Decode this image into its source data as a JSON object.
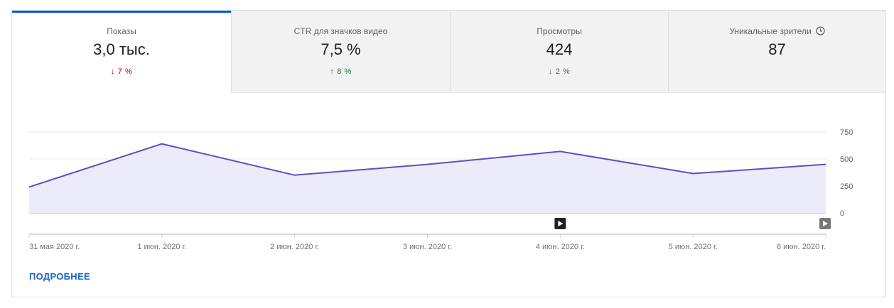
{
  "tabs": [
    {
      "title": "Показы",
      "value": "3,0 тыс.",
      "change": "7 %",
      "direction": "down",
      "change_color": "#c00000",
      "active": true
    },
    {
      "title": "CTR для значков видео",
      "value": "7,5 %",
      "change": "8 %",
      "direction": "up",
      "change_color": "#0b8043",
      "active": false
    },
    {
      "title": "Просмотры",
      "value": "424",
      "change": "2 %",
      "direction": "down",
      "change_color": "#606060",
      "active": false
    },
    {
      "title": "Уникальные зрители",
      "value": "87",
      "change": "",
      "direction": "",
      "change_color": "#606060",
      "active": false,
      "icon": "clock-icon"
    }
  ],
  "chart_data": {
    "type": "area",
    "title": "",
    "xlabel": "",
    "ylabel": "",
    "x": [
      "31 мая 2020 г.",
      "1 июн. 2020 г.",
      "2 июн. 2020 г.",
      "3 июн. 2020 г.",
      "4 июн. 2020 г.",
      "5 июн. 2020 г.",
      "6 июн. 2020 г."
    ],
    "series": [
      {
        "values": [
          240,
          640,
          350,
          450,
          570,
          365,
          450
        ]
      }
    ],
    "ylim": [
      0,
      750
    ],
    "yticks": [
      "750",
      "500",
      "250",
      "0"
    ],
    "grid": true,
    "line_color": "#5b4fc4",
    "fill_color": "#ecebfa",
    "markers": [
      {
        "icon": "play-icon",
        "at": "4 июн. 2020 г.",
        "color": "#222222"
      },
      {
        "icon": "play-icon",
        "at": "6 июн. 2020 г.",
        "color": "#777777"
      }
    ]
  },
  "more_link": "ПОДРОБНЕЕ"
}
